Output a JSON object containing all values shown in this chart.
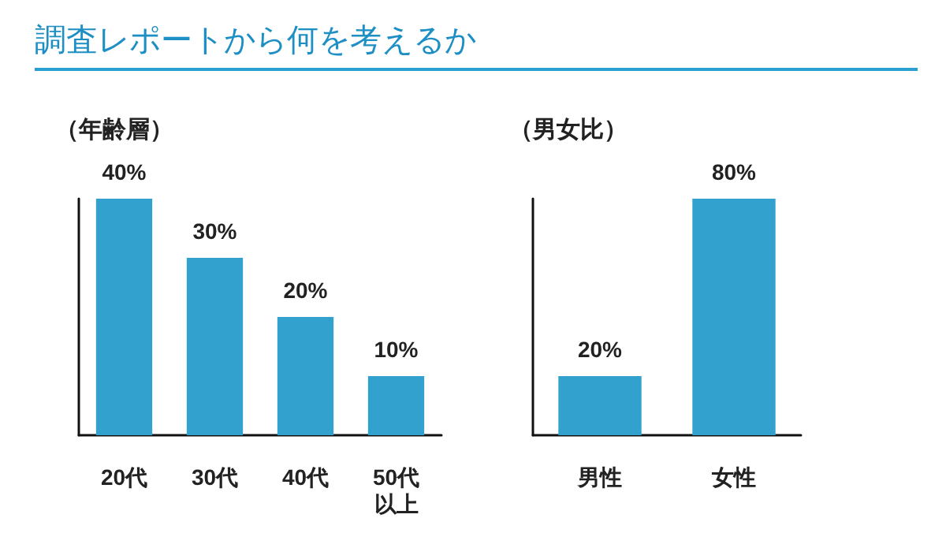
{
  "chart_data": [
    {
      "type": "bar",
      "title": "調査レポートから何を考えるか",
      "subtitle": "（年齢層）",
      "categories": [
        "20代",
        "30代",
        "40代",
        "50代以上"
      ],
      "values": [
        40,
        30,
        20,
        10
      ],
      "value_labels": [
        "40%",
        "30%",
        "20%",
        "10%"
      ],
      "color": "#33a1cd",
      "tick_labels": "x",
      "grid": false
    },
    {
      "type": "bar",
      "subtitle": "（男女比）",
      "categories": [
        "男性",
        "女性"
      ],
      "values": [
        20,
        80
      ],
      "value_labels": [
        "20%",
        "80%"
      ],
      "color": "#33a1cd",
      "tick_labels": "x",
      "grid": false
    }
  ]
}
